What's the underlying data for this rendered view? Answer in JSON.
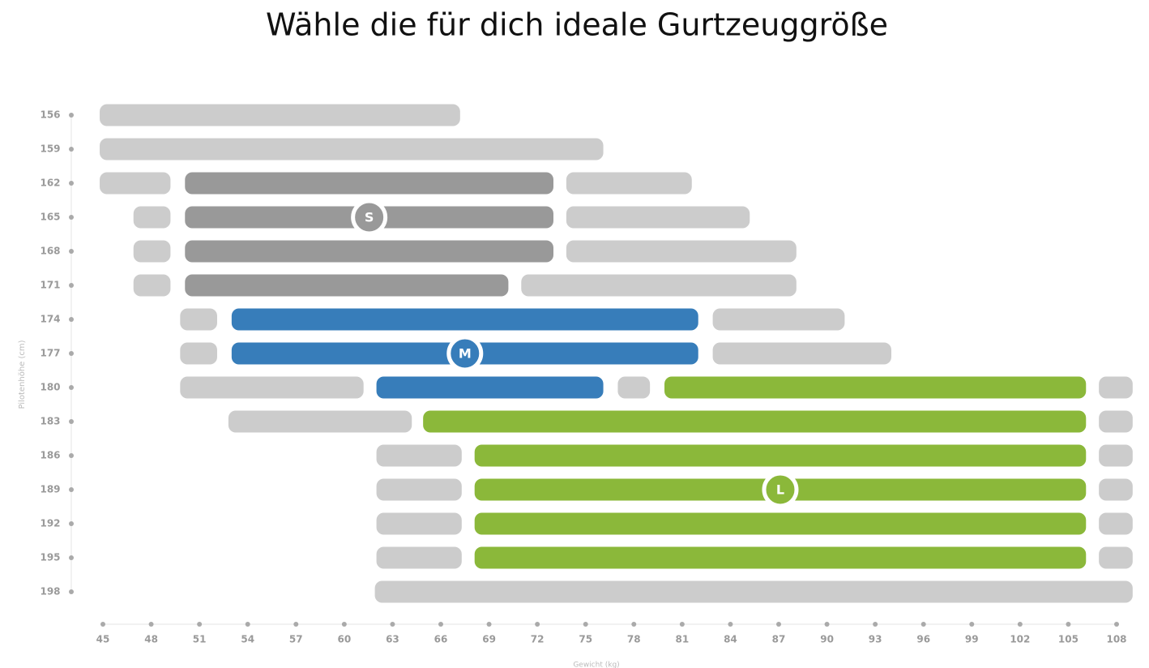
{
  "chart_data": {
    "type": "range",
    "title": "Wähle die für dich ideale Gurtzeuggröße",
    "ylabel": "Pilotenhöhe (cm)",
    "xlabel": "Gewicht (kg)",
    "categories": [
      156,
      159,
      162,
      165,
      168,
      171,
      174,
      177,
      180,
      183,
      186,
      189,
      192,
      195,
      198
    ],
    "xlim": [
      45,
      108
    ],
    "xticks": [
      45,
      48,
      51,
      54,
      57,
      60,
      63,
      66,
      69,
      72,
      75,
      78,
      81,
      84,
      87,
      90,
      93,
      96,
      99,
      102,
      105,
      108
    ],
    "other_color": "#cccccc",
    "sizes": [
      {
        "label": "S",
        "color": "#999999",
        "badge_height": 165
      },
      {
        "label": "M",
        "color": "#377dba",
        "badge_height": 177
      },
      {
        "label": "L",
        "color": "#8bb83a",
        "badge_height": 189
      }
    ],
    "rows": [
      [
        {
          "start": 44.8,
          "end": 67.2,
          "size": null
        }
      ],
      [
        {
          "start": 44.8,
          "end": 76.1,
          "size": null
        }
      ],
      [
        {
          "start": 44.8,
          "end": 49.2,
          "size": null
        },
        {
          "start": 50.1,
          "end": 73.0,
          "size": 0
        },
        {
          "start": 73.8,
          "end": 81.6,
          "size": null
        }
      ],
      [
        {
          "start": 46.9,
          "end": 49.2,
          "size": null
        },
        {
          "start": 50.1,
          "end": 73.0,
          "size": 0
        },
        {
          "start": 73.8,
          "end": 85.2,
          "size": null
        }
      ],
      [
        {
          "start": 46.9,
          "end": 49.2,
          "size": null
        },
        {
          "start": 50.1,
          "end": 73.0,
          "size": 0
        },
        {
          "start": 73.8,
          "end": 88.1,
          "size": null
        }
      ],
      [
        {
          "start": 46.9,
          "end": 49.2,
          "size": null
        },
        {
          "start": 50.1,
          "end": 70.2,
          "size": 0
        },
        {
          "start": 71.0,
          "end": 88.1,
          "size": null
        }
      ],
      [
        {
          "start": 49.8,
          "end": 52.1,
          "size": null
        },
        {
          "start": 53.0,
          "end": 82.0,
          "size": 1
        },
        {
          "start": 82.9,
          "end": 91.1,
          "size": null
        }
      ],
      [
        {
          "start": 49.8,
          "end": 52.1,
          "size": null
        },
        {
          "start": 53.0,
          "end": 82.0,
          "size": 1
        },
        {
          "start": 82.9,
          "end": 94.0,
          "size": null
        }
      ],
      [
        {
          "start": 49.8,
          "end": 61.2,
          "size": null
        },
        {
          "start": 62.0,
          "end": 76.1,
          "size": 1
        },
        {
          "start": 77.0,
          "end": 79.0,
          "size": null
        },
        {
          "start": 79.9,
          "end": 106.1,
          "size": 2
        },
        {
          "start": 106.9,
          "end": 109.0,
          "size": null
        }
      ],
      [
        {
          "start": 52.8,
          "end": 64.2,
          "size": null
        },
        {
          "start": 64.9,
          "end": 106.1,
          "size": 2
        },
        {
          "start": 106.9,
          "end": 109.0,
          "size": null
        }
      ],
      [
        {
          "start": 62.0,
          "end": 67.3,
          "size": null
        },
        {
          "start": 68.1,
          "end": 106.1,
          "size": 2
        },
        {
          "start": 106.9,
          "end": 109.0,
          "size": null
        }
      ],
      [
        {
          "start": 62.0,
          "end": 67.3,
          "size": null
        },
        {
          "start": 68.1,
          "end": 106.1,
          "size": 2
        },
        {
          "start": 106.9,
          "end": 109.0,
          "size": null
        }
      ],
      [
        {
          "start": 62.0,
          "end": 67.3,
          "size": null
        },
        {
          "start": 68.1,
          "end": 106.1,
          "size": 2
        },
        {
          "start": 106.9,
          "end": 109.0,
          "size": null
        }
      ],
      [
        {
          "start": 62.0,
          "end": 67.3,
          "size": null
        },
        {
          "start": 68.1,
          "end": 106.1,
          "size": 2
        },
        {
          "start": 106.9,
          "end": 109.0,
          "size": null
        }
      ],
      [
        {
          "start": 61.9,
          "end": 109.0,
          "size": null
        }
      ]
    ]
  }
}
